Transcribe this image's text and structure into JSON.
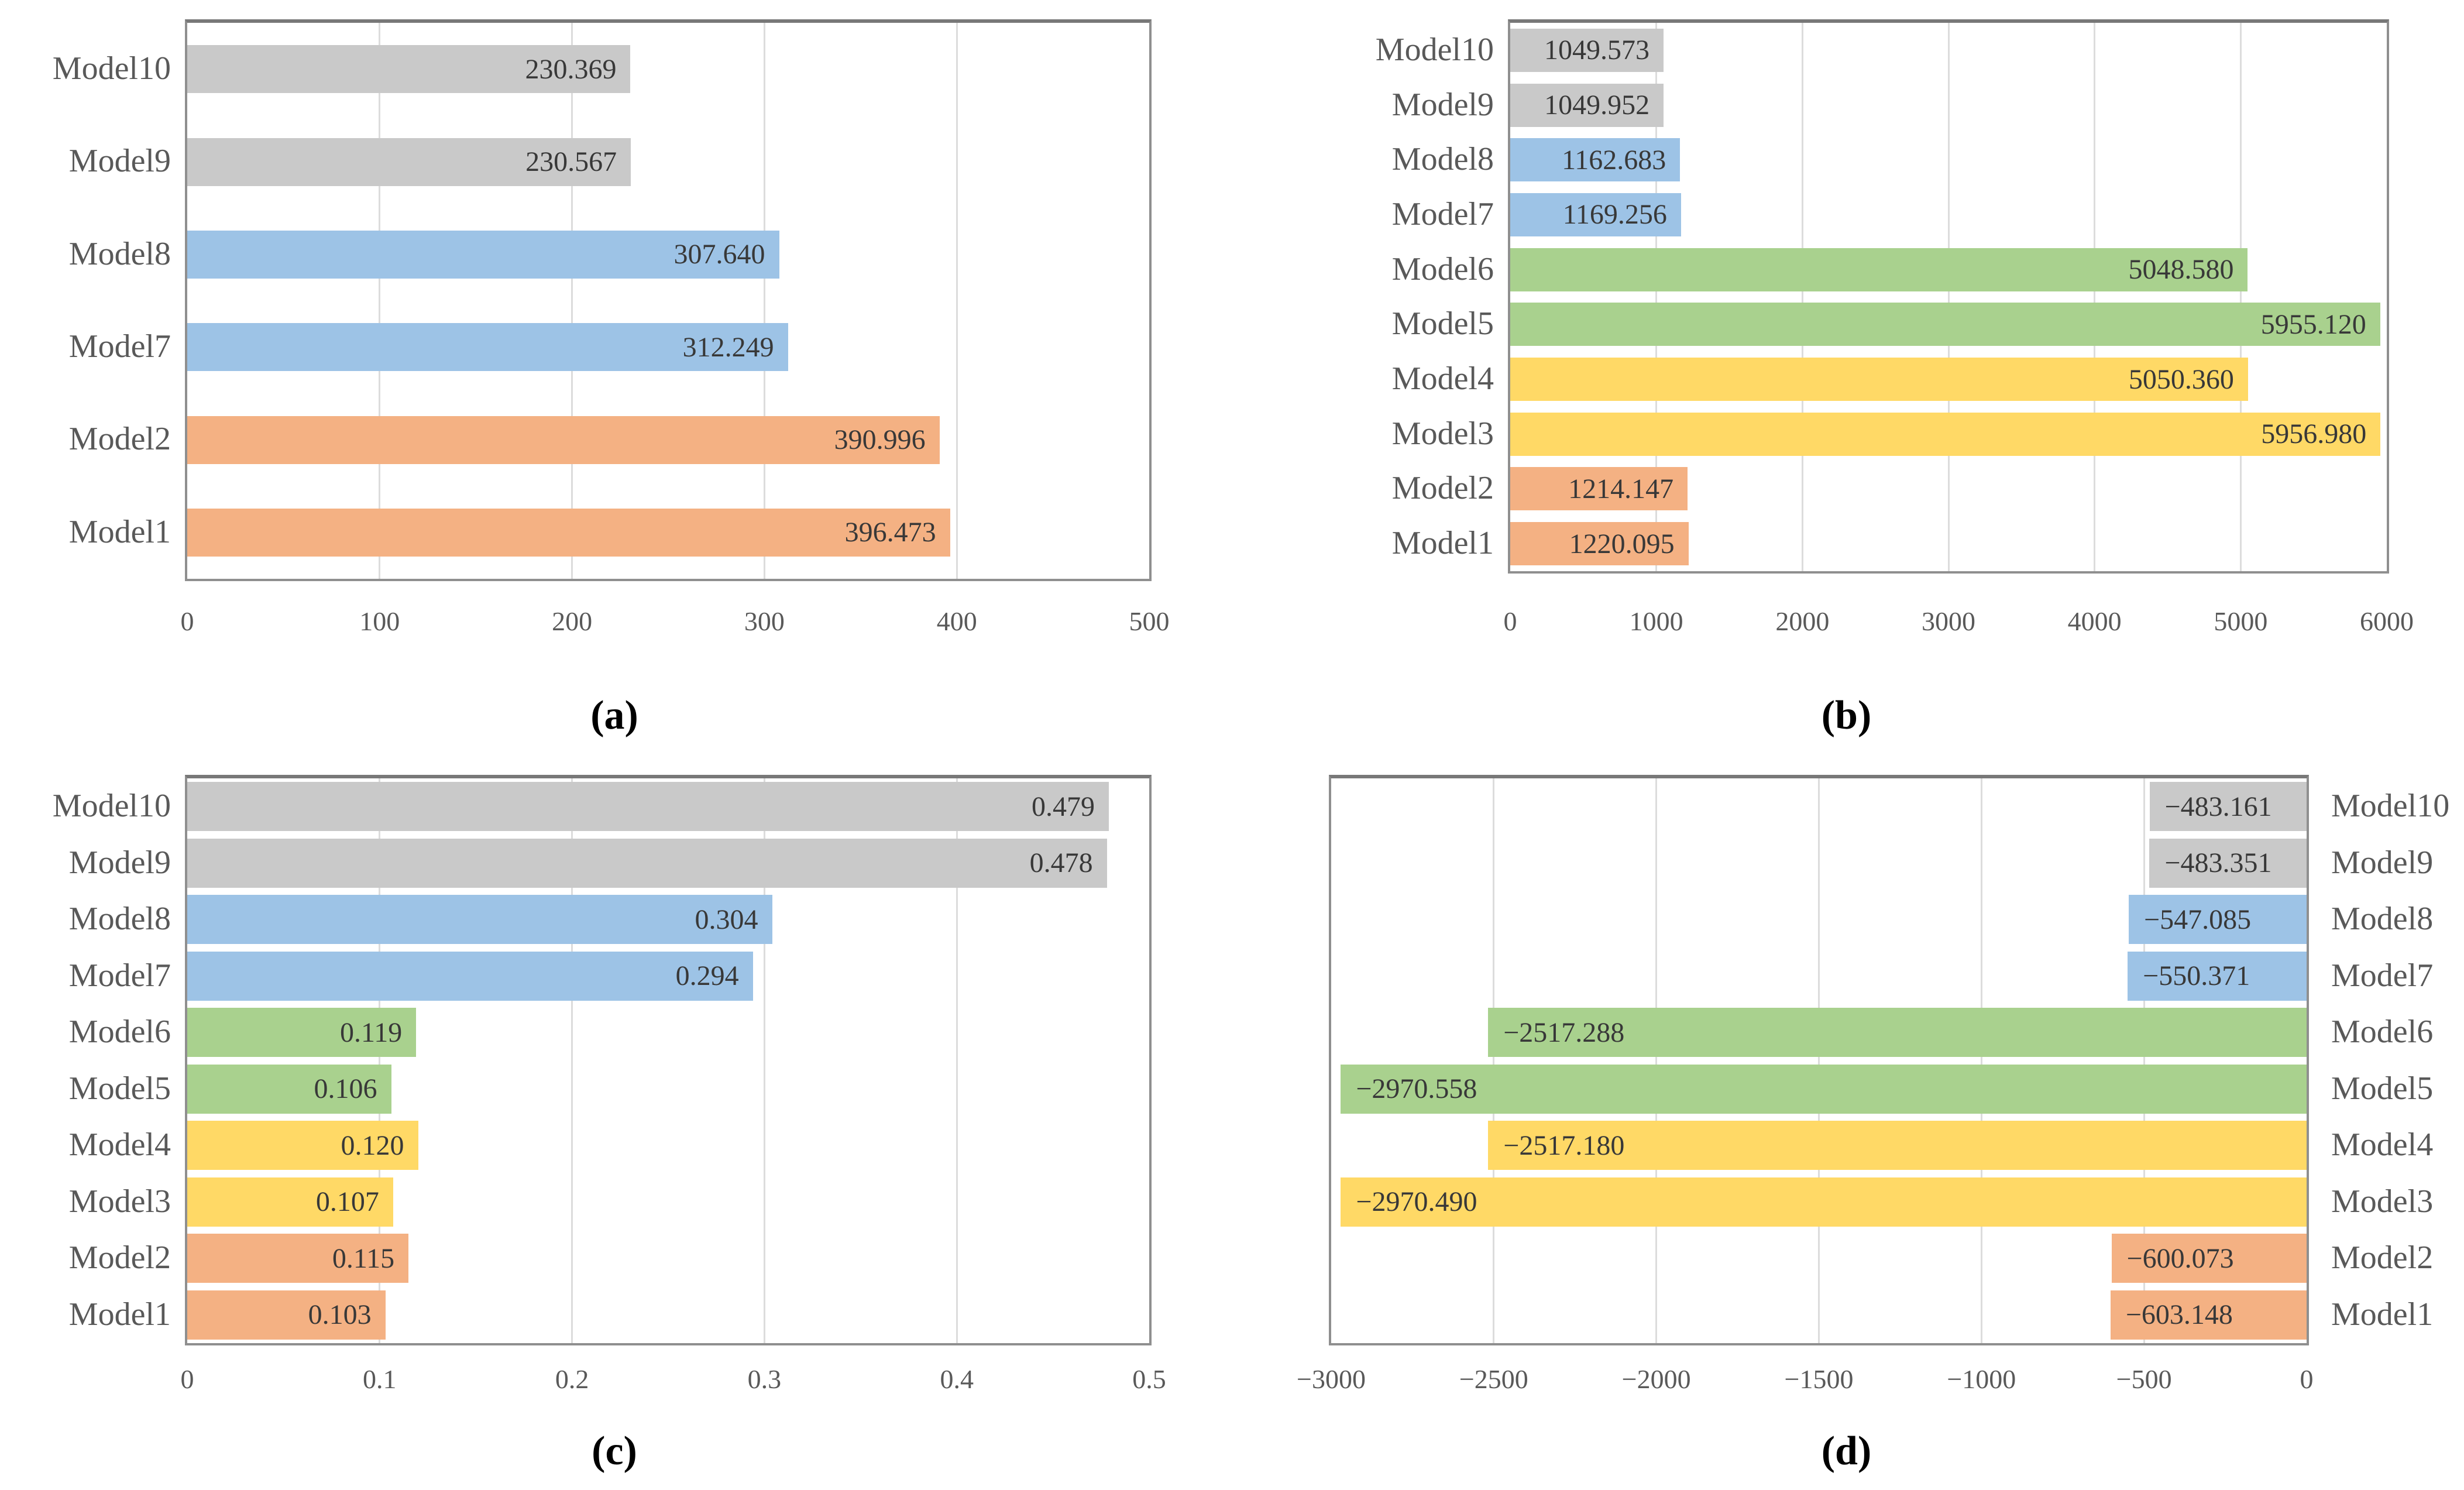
{
  "colors": {
    "orange": "#F4B183",
    "yellow": "#FFD966",
    "green": "#A9D18E",
    "blue": "#9DC3E6",
    "gray": "#C9C9C9",
    "grid": "#DCDCDC",
    "border": "#8F8F8F",
    "category_text": "#595959",
    "tick_text": "#595959",
    "value_text": "#383838",
    "caption_text": "#000000"
  },
  "chart_data": [
    {
      "id": "a",
      "type": "bar",
      "orientation": "horizontal",
      "caption": "(a)",
      "title": "",
      "xlabel": "",
      "ylabel": "",
      "grid": true,
      "legend": false,
      "labels_side": "left",
      "xlim": [
        0,
        500
      ],
      "tick_values": [
        0,
        100,
        200,
        300,
        400,
        500
      ],
      "tick_labels": [
        "0",
        "100",
        "200",
        "300",
        "400",
        "500"
      ],
      "rows": [
        {
          "label": "Model10",
          "value": 230.369,
          "value_label": "230.369",
          "color": "gray"
        },
        {
          "label": "Model9",
          "value": 230.567,
          "value_label": "230.567",
          "color": "gray"
        },
        {
          "label": "Model8",
          "value": 307.64,
          "value_label": "307.640",
          "color": "blue"
        },
        {
          "label": "Model7",
          "value": 312.249,
          "value_label": "312.249",
          "color": "blue"
        },
        {
          "label": "Model2",
          "value": 390.996,
          "value_label": "390.996",
          "color": "orange"
        },
        {
          "label": "Model1",
          "value": 396.473,
          "value_label": "396.473",
          "color": "orange"
        }
      ]
    },
    {
      "id": "b",
      "type": "bar",
      "orientation": "horizontal",
      "caption": "(b)",
      "title": "",
      "xlabel": "",
      "ylabel": "",
      "grid": true,
      "legend": false,
      "labels_side": "left",
      "xlim": [
        0,
        6000
      ],
      "tick_values": [
        0,
        1000,
        2000,
        3000,
        4000,
        5000,
        6000
      ],
      "tick_labels": [
        "0",
        "1000",
        "2000",
        "3000",
        "4000",
        "5000",
        "6000"
      ],
      "rows": [
        {
          "label": "Model10",
          "value": 1049.573,
          "value_label": "1049.573",
          "color": "gray"
        },
        {
          "label": "Model9",
          "value": 1049.952,
          "value_label": "1049.952",
          "color": "gray"
        },
        {
          "label": "Model8",
          "value": 1162.683,
          "value_label": "1162.683",
          "color": "blue"
        },
        {
          "label": "Model7",
          "value": 1169.256,
          "value_label": "1169.256",
          "color": "blue"
        },
        {
          "label": "Model6",
          "value": 5048.58,
          "value_label": "5048.580",
          "color": "green"
        },
        {
          "label": "Model5",
          "value": 5955.12,
          "value_label": "5955.120",
          "color": "green"
        },
        {
          "label": "Model4",
          "value": 5050.36,
          "value_label": "5050.360",
          "color": "yellow"
        },
        {
          "label": "Model3",
          "value": 5956.98,
          "value_label": "5956.980",
          "color": "yellow"
        },
        {
          "label": "Model2",
          "value": 1214.147,
          "value_label": "1214.147",
          "color": "orange"
        },
        {
          "label": "Model1",
          "value": 1220.095,
          "value_label": "1220.095",
          "color": "orange"
        }
      ]
    },
    {
      "id": "c",
      "type": "bar",
      "orientation": "horizontal",
      "caption": "(c)",
      "title": "",
      "xlabel": "",
      "ylabel": "",
      "grid": true,
      "legend": false,
      "labels_side": "left",
      "xlim": [
        0,
        0.5
      ],
      "tick_values": [
        0,
        0.1,
        0.2,
        0.3,
        0.4,
        0.5
      ],
      "tick_labels": [
        "0",
        "0.1",
        "0.2",
        "0.3",
        "0.4",
        "0.5"
      ],
      "rows": [
        {
          "label": "Model10",
          "value": 0.479,
          "value_label": "0.479",
          "color": "gray"
        },
        {
          "label": "Model9",
          "value": 0.478,
          "value_label": "0.478",
          "color": "gray"
        },
        {
          "label": "Model8",
          "value": 0.304,
          "value_label": "0.304",
          "color": "blue"
        },
        {
          "label": "Model7",
          "value": 0.294,
          "value_label": "0.294",
          "color": "blue"
        },
        {
          "label": "Model6",
          "value": 0.119,
          "value_label": "0.119",
          "color": "green"
        },
        {
          "label": "Model5",
          "value": 0.106,
          "value_label": "0.106",
          "color": "green"
        },
        {
          "label": "Model4",
          "value": 0.12,
          "value_label": "0.120",
          "color": "yellow"
        },
        {
          "label": "Model3",
          "value": 0.107,
          "value_label": "0.107",
          "color": "yellow"
        },
        {
          "label": "Model2",
          "value": 0.115,
          "value_label": "0.115",
          "color": "orange"
        },
        {
          "label": "Model1",
          "value": 0.103,
          "value_label": "0.103",
          "color": "orange"
        }
      ]
    },
    {
      "id": "d",
      "type": "bar",
      "orientation": "horizontal",
      "caption": "(d)",
      "title": "",
      "xlabel": "",
      "ylabel": "",
      "grid": true,
      "legend": false,
      "labels_side": "right",
      "xlim": [
        -3000,
        0
      ],
      "tick_values": [
        -3000,
        -2500,
        -2000,
        -1500,
        -1000,
        -500,
        0
      ],
      "tick_labels": [
        "−3000",
        "−2500",
        "−2000",
        "−1500",
        "−1000",
        "−500",
        "0"
      ],
      "rows": [
        {
          "label": "Model10",
          "value": -483.161,
          "value_label": "−483.161",
          "color": "gray"
        },
        {
          "label": "Model9",
          "value": -483.351,
          "value_label": "−483.351",
          "color": "gray"
        },
        {
          "label": "Model8",
          "value": -547.085,
          "value_label": "−547.085",
          "color": "blue"
        },
        {
          "label": "Model7",
          "value": -550.371,
          "value_label": "−550.371",
          "color": "blue"
        },
        {
          "label": "Model6",
          "value": -2517.288,
          "value_label": "−2517.288",
          "color": "green"
        },
        {
          "label": "Model5",
          "value": -2970.558,
          "value_label": "−2970.558",
          "color": "green"
        },
        {
          "label": "Model4",
          "value": -2517.18,
          "value_label": "−2517.180",
          "color": "yellow"
        },
        {
          "label": "Model3",
          "value": -2970.49,
          "value_label": "−2970.490",
          "color": "yellow"
        },
        {
          "label": "Model2",
          "value": -600.073,
          "value_label": "−600.073",
          "color": "orange"
        },
        {
          "label": "Model1",
          "value": -603.148,
          "value_label": "−603.148",
          "color": "orange"
        }
      ]
    }
  ]
}
